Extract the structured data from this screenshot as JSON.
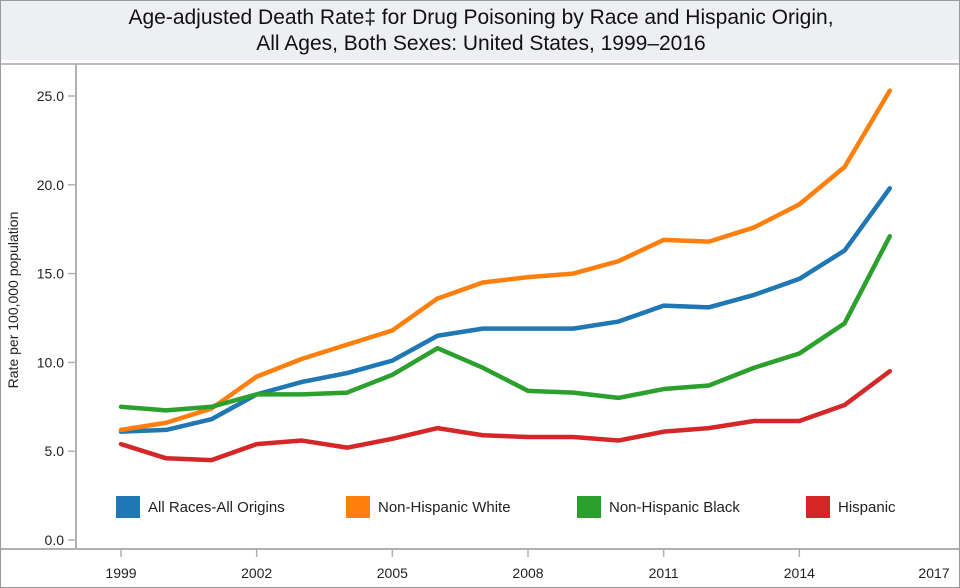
{
  "chart_data": {
    "type": "line",
    "title_line1": "Age-adjusted Death Rate‡ for Drug Poisoning by Race and Hispanic Origin,",
    "title_line2": "All Ages, Both Sexes: United States, 1999–2016",
    "xlabel": "",
    "ylabel": "Rate per 100,000 population",
    "xlim": [
      1998,
      2017
    ],
    "ylim": [
      0,
      25
    ],
    "x_ticks": [
      "1999",
      "2002",
      "2005",
      "2008",
      "2011",
      "2014",
      "2017"
    ],
    "y_ticks": [
      "0.0",
      "5.0",
      "10.0",
      "15.0",
      "20.0",
      "25.0"
    ],
    "grid": false,
    "legend_placement": "bottom",
    "x": [
      1999,
      2000,
      2001,
      2002,
      2003,
      2004,
      2005,
      2006,
      2007,
      2008,
      2009,
      2010,
      2011,
      2012,
      2013,
      2014,
      2015,
      2016
    ],
    "series": [
      {
        "name": "All Races-All Origins",
        "color": "#1f77b4",
        "values": [
          6.1,
          6.2,
          6.8,
          8.2,
          8.9,
          9.4,
          10.1,
          11.5,
          11.9,
          11.9,
          11.9,
          12.3,
          13.2,
          13.1,
          13.8,
          14.7,
          16.3,
          19.8
        ]
      },
      {
        "name": "Non-Hispanic White",
        "color": "#ff7f0e",
        "values": [
          6.2,
          6.6,
          7.4,
          9.2,
          10.2,
          11.0,
          11.8,
          13.6,
          14.5,
          14.8,
          15.0,
          15.7,
          16.9,
          16.8,
          17.6,
          18.9,
          21.0,
          25.3
        ]
      },
      {
        "name": "Non-Hispanic Black",
        "color": "#2ca02c",
        "values": [
          7.5,
          7.3,
          7.5,
          8.2,
          8.2,
          8.3,
          9.3,
          10.8,
          9.7,
          8.4,
          8.3,
          8.0,
          8.5,
          8.7,
          9.7,
          10.5,
          12.2,
          17.1
        ]
      },
      {
        "name": "Hispanic",
        "color": "#d62728",
        "values": [
          5.4,
          4.6,
          4.5,
          5.4,
          5.6,
          5.2,
          5.7,
          6.3,
          5.9,
          5.8,
          5.8,
          5.6,
          6.1,
          6.3,
          6.7,
          6.7,
          7.6,
          9.5
        ]
      }
    ]
  }
}
